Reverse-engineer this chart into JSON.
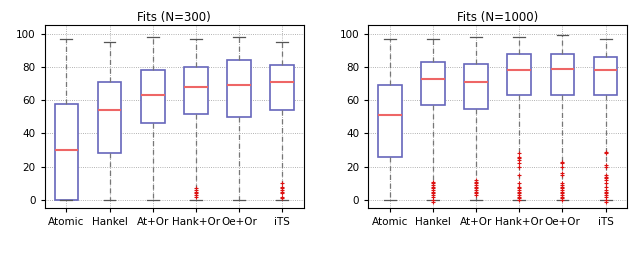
{
  "titles": [
    "Fits (N=300)",
    "Fits (N=1000)"
  ],
  "categories": [
    "Atomic",
    "Hankel",
    "At+Or",
    "Hank+Or",
    "Oe+Or",
    "iTS"
  ],
  "ylim": [
    -5,
    105
  ],
  "yticks": [
    0,
    20,
    40,
    60,
    80,
    100
  ],
  "box_color": "#6666bb",
  "median_color": "#ee6666",
  "whisker_color": "#777777",
  "cap_color": "#555555",
  "outlier_color": "#dd1111",
  "plot1": {
    "boxes": [
      {
        "q1": 0,
        "median": 30,
        "q3": 58,
        "whislo": 0,
        "whishi": 97,
        "fliers": []
      },
      {
        "q1": 28,
        "median": 54,
        "q3": 71,
        "whislo": 0,
        "whishi": 95,
        "fliers": []
      },
      {
        "q1": 46,
        "median": 63,
        "q3": 78,
        "whislo": 0,
        "whishi": 98,
        "fliers": []
      },
      {
        "q1": 52,
        "median": 68,
        "q3": 80,
        "whislo": 0,
        "whishi": 97,
        "fliers": [
          7,
          6,
          5,
          4,
          3,
          2
        ]
      },
      {
        "q1": 50,
        "median": 69,
        "q3": 84,
        "whislo": 0,
        "whishi": 98,
        "fliers": []
      },
      {
        "q1": 54,
        "median": 71,
        "q3": 81,
        "whislo": 0,
        "whishi": 95,
        "fliers": [
          10,
          8,
          7,
          6,
          5,
          4,
          2,
          1
        ]
      }
    ]
  },
  "plot2": {
    "boxes": [
      {
        "q1": 26,
        "median": 51,
        "q3": 69,
        "whislo": 0,
        "whishi": 97,
        "fliers": []
      },
      {
        "q1": 57,
        "median": 73,
        "q3": 83,
        "whislo": 0,
        "whishi": 97,
        "fliers": [
          -1,
          0,
          2,
          3,
          4,
          5,
          6,
          7,
          8,
          9,
          10,
          11
        ]
      },
      {
        "q1": 55,
        "median": 71,
        "q3": 82,
        "whislo": 0,
        "whishi": 98,
        "fliers": [
          3,
          4,
          5,
          6,
          7,
          8,
          9,
          10,
          11,
          12
        ]
      },
      {
        "q1": 63,
        "median": 78,
        "q3": 88,
        "whislo": 0,
        "whishi": 98,
        "fliers": [
          0,
          1,
          2,
          3,
          4,
          5,
          6,
          7,
          8,
          10,
          15,
          20,
          22,
          24,
          25,
          26,
          28
        ]
      },
      {
        "q1": 63,
        "median": 79,
        "q3": 88,
        "whislo": 0,
        "whishi": 99,
        "fliers": [
          0,
          1,
          2,
          3,
          4,
          5,
          6,
          7,
          8,
          9,
          10,
          15,
          16,
          20,
          22,
          23
        ]
      },
      {
        "q1": 63,
        "median": 78,
        "q3": 86,
        "whislo": 0,
        "whishi": 97,
        "fliers": [
          -1,
          0,
          2,
          3,
          4,
          5,
          6,
          8,
          10,
          12,
          13,
          14,
          15,
          20,
          21,
          28,
          29
        ]
      }
    ]
  }
}
